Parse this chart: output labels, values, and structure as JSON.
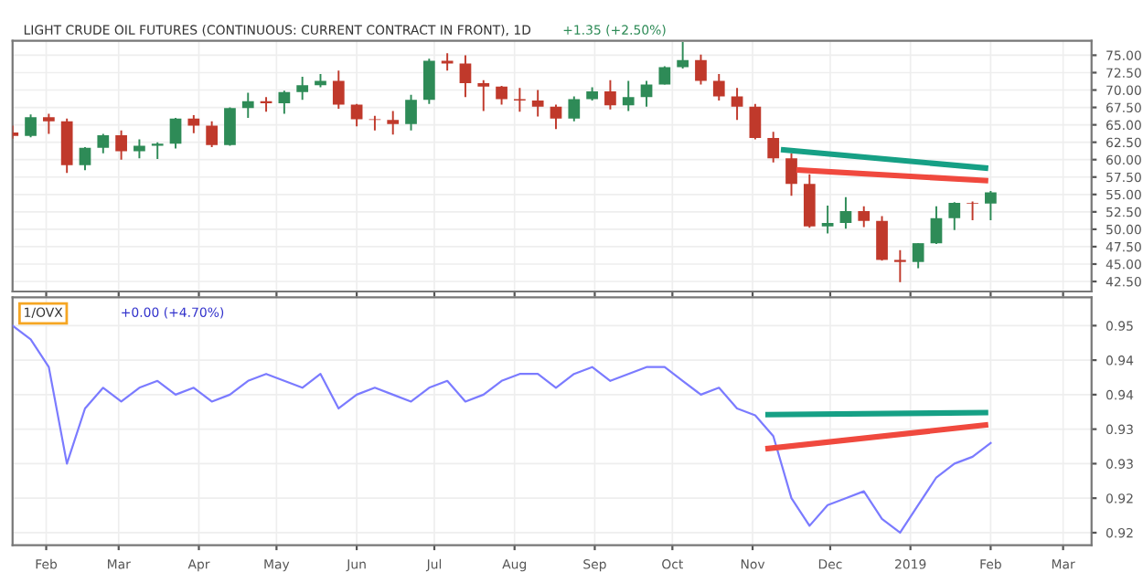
{
  "chart_data": [
    {
      "type": "candlestick",
      "title": "LIGHT CRUDE OIL FUTURES (CONTINUOUS: CURRENT CONTRACT IN FRONT), 1D",
      "annotations": [
        "+1.35 (+2.50%)"
      ],
      "x": [
        "2018-01-19",
        "2018-01-26",
        "2018-02-02",
        "2018-02-09",
        "2018-02-16",
        "2018-02-23",
        "2018-03-02",
        "2018-03-09",
        "2018-03-16",
        "2018-03-23",
        "2018-03-30",
        "2018-04-06",
        "2018-04-13",
        "2018-04-20",
        "2018-04-27",
        "2018-05-04",
        "2018-05-11",
        "2018-05-18",
        "2018-05-25",
        "2018-06-01",
        "2018-06-08",
        "2018-06-15",
        "2018-06-22",
        "2018-06-29",
        "2018-07-06",
        "2018-07-13",
        "2018-07-20",
        "2018-07-27",
        "2018-08-03",
        "2018-08-10",
        "2018-08-17",
        "2018-08-24",
        "2018-08-31",
        "2018-09-07",
        "2018-09-14",
        "2018-09-21",
        "2018-09-28",
        "2018-10-05",
        "2018-10-12",
        "2018-10-19",
        "2018-10-26",
        "2018-11-02",
        "2018-11-09",
        "2018-11-16",
        "2018-11-23",
        "2018-11-30",
        "2018-12-07",
        "2018-12-14",
        "2018-12-21",
        "2018-12-28",
        "2019-01-04",
        "2019-01-11",
        "2019-01-18",
        "2019-01-25",
        "2019-02-01"
      ],
      "ohlc": [
        [
          63.9,
          64.9,
          63.0,
          63.4
        ],
        [
          63.4,
          66.5,
          63.2,
          66.1
        ],
        [
          66.1,
          66.6,
          63.7,
          65.5
        ],
        [
          65.5,
          65.9,
          58.1,
          59.2
        ],
        [
          59.2,
          61.8,
          58.5,
          61.7
        ],
        [
          61.7,
          63.7,
          60.9,
          63.5
        ],
        [
          63.5,
          64.2,
          60.0,
          61.2
        ],
        [
          61.2,
          62.9,
          60.2,
          62.0
        ],
        [
          62.0,
          62.5,
          60.1,
          62.3
        ],
        [
          62.3,
          66.0,
          61.6,
          65.9
        ],
        [
          65.9,
          66.4,
          63.8,
          64.9
        ],
        [
          64.9,
          65.5,
          61.8,
          62.1
        ],
        [
          62.1,
          67.5,
          62.0,
          67.4
        ],
        [
          67.4,
          69.6,
          66.0,
          68.4
        ],
        [
          68.4,
          69.0,
          66.9,
          68.1
        ],
        [
          68.1,
          69.9,
          66.6,
          69.7
        ],
        [
          69.7,
          71.9,
          68.6,
          70.7
        ],
        [
          70.7,
          72.3,
          70.4,
          71.3
        ],
        [
          71.3,
          72.8,
          67.3,
          67.9
        ],
        [
          67.9,
          68.0,
          64.8,
          65.8
        ],
        [
          65.8,
          66.3,
          64.2,
          65.7
        ],
        [
          65.7,
          67.0,
          63.6,
          65.1
        ],
        [
          65.1,
          69.3,
          64.2,
          68.6
        ],
        [
          68.6,
          74.5,
          68.0,
          74.2
        ],
        [
          74.2,
          75.3,
          72.8,
          73.8
        ],
        [
          73.8,
          75.0,
          69.0,
          71.0
        ],
        [
          71.0,
          71.4,
          67.0,
          70.5
        ],
        [
          70.5,
          70.6,
          67.9,
          68.7
        ],
        [
          68.7,
          70.3,
          66.9,
          68.5
        ],
        [
          68.5,
          70.0,
          66.2,
          67.6
        ],
        [
          67.6,
          67.9,
          64.4,
          65.9
        ],
        [
          65.9,
          69.1,
          65.5,
          68.7
        ],
        [
          68.7,
          70.4,
          68.5,
          69.8
        ],
        [
          69.8,
          71.4,
          67.2,
          67.8
        ],
        [
          67.8,
          71.3,
          67.0,
          69.0
        ],
        [
          69.0,
          71.3,
          67.6,
          70.8
        ],
        [
          70.8,
          73.4,
          70.8,
          73.3
        ],
        [
          73.3,
          76.9,
          73.1,
          74.3
        ],
        [
          74.3,
          75.1,
          70.8,
          71.3
        ],
        [
          71.3,
          72.3,
          68.5,
          69.1
        ],
        [
          69.1,
          70.3,
          65.7,
          67.6
        ],
        [
          67.6,
          68.0,
          62.9,
          63.1
        ],
        [
          63.1,
          64.0,
          59.6,
          60.2
        ],
        [
          60.2,
          60.9,
          54.8,
          56.5
        ],
        [
          56.5,
          57.9,
          50.2,
          50.4
        ],
        [
          50.4,
          53.4,
          49.4,
          50.9
        ],
        [
          50.9,
          54.6,
          50.1,
          52.6
        ],
        [
          52.6,
          53.3,
          50.3,
          51.2
        ],
        [
          51.2,
          51.9,
          45.5,
          45.6
        ],
        [
          45.6,
          47.0,
          42.4,
          45.3
        ],
        [
          45.3,
          48.0,
          44.4,
          48.0
        ],
        [
          48.0,
          53.3,
          47.9,
          51.6
        ],
        [
          51.6,
          53.9,
          49.9,
          53.8
        ],
        [
          53.8,
          54.0,
          51.3,
          53.7
        ],
        [
          53.7,
          55.5,
          51.3,
          55.3
        ]
      ],
      "colors": [
        "#c0392b",
        "#2e8b57",
        "#c0392b",
        "#c0392b",
        "#2e8b57",
        "#2e8b57",
        "#c0392b",
        "#2e8b57",
        "#2e8b57",
        "#2e8b57",
        "#c0392b",
        "#c0392b",
        "#2e8b57",
        "#2e8b57",
        "#c0392b",
        "#2e8b57",
        "#2e8b57",
        "#2e8b57",
        "#c0392b",
        "#c0392b",
        "#c0392b",
        "#c0392b",
        "#2e8b57",
        "#2e8b57",
        "#c0392b",
        "#c0392b",
        "#c0392b",
        "#c0392b",
        "#c0392b",
        "#c0392b",
        "#c0392b",
        "#2e8b57",
        "#2e8b57",
        "#c0392b",
        "#2e8b57",
        "#2e8b57",
        "#2e8b57",
        "#2e8b57",
        "#c0392b",
        "#c0392b",
        "#c0392b",
        "#c0392b",
        "#c0392b",
        "#c0392b",
        "#c0392b",
        "#2e8b57",
        "#2e8b57",
        "#c0392b",
        "#c0392b",
        "#c0392b",
        "#2e8b57",
        "#2e8b57",
        "#2e8b57",
        "#c0392b",
        "#2e8b57"
      ],
      "series": [
        {
          "type": "line",
          "x": [
            "2018-11-13",
            "2019-01-30"
          ],
          "values": [
            61.4,
            58.8
          ],
          "color": "#16a085"
        },
        {
          "type": "line",
          "x": [
            "2018-11-19",
            "2019-01-30"
          ],
          "values": [
            58.5,
            57.0
          ],
          "color": "#f0493e"
        }
      ],
      "xlim": [
        "2018-01-19",
        "2019-03-12"
      ],
      "ylim": [
        41.06,
        77.07
      ],
      "yticks": [
        {
          "value": 42.5,
          "label": "42.50"
        },
        {
          "value": 45,
          "label": "45.00"
        },
        {
          "value": 47.5,
          "label": "47.50"
        },
        {
          "value": 50,
          "label": "50.00"
        },
        {
          "value": 52.5,
          "label": "52.50"
        },
        {
          "value": 55,
          "label": "55.00"
        },
        {
          "value": 57.5,
          "label": "57.50"
        },
        {
          "value": 60,
          "label": "60.00"
        },
        {
          "value": 62.5,
          "label": "62.50"
        },
        {
          "value": 65,
          "label": "65.00"
        },
        {
          "value": 67.5,
          "label": "67.50"
        },
        {
          "value": 70,
          "label": "70.00"
        },
        {
          "value": 72.5,
          "label": "72.50"
        },
        {
          "value": 75,
          "label": "75.00"
        }
      ],
      "xticks": [
        {
          "value": "2018-02-01",
          "label": null
        },
        {
          "value": "2018-03-01",
          "label": null
        },
        {
          "value": "2018-04-01",
          "label": null
        },
        {
          "value": "2018-05-01",
          "label": null
        },
        {
          "value": "2018-06-01",
          "label": null
        },
        {
          "value": "2018-07-01",
          "label": null
        },
        {
          "value": "2018-08-01",
          "label": null
        },
        {
          "value": "2018-09-01",
          "label": null
        },
        {
          "value": "2018-10-01",
          "label": null
        },
        {
          "value": "2018-11-01",
          "label": null
        },
        {
          "value": "2018-12-01",
          "label": null
        },
        {
          "value": "2019-01-01",
          "label": null
        },
        {
          "value": "2019-02-01",
          "label": null
        },
        {
          "value": "2019-03-01",
          "label": null
        }
      ],
      "tick_labels": "y",
      "grid": true,
      "legend": false
    },
    {
      "type": "line",
      "annotations": [
        "1/OVX",
        "+0.00 (+4.70%)"
      ],
      "series": [
        {
          "x": [
            "2018-01-19",
            "2018-01-26",
            "2018-02-02",
            "2018-02-09",
            "2018-02-16",
            "2018-02-23",
            "2018-03-02",
            "2018-03-09",
            "2018-03-16",
            "2018-03-23",
            "2018-03-30",
            "2018-04-06",
            "2018-04-13",
            "2018-04-20",
            "2018-04-27",
            "2018-05-04",
            "2018-05-11",
            "2018-05-18",
            "2018-05-25",
            "2018-06-01",
            "2018-06-08",
            "2018-06-15",
            "2018-06-22",
            "2018-06-29",
            "2018-07-06",
            "2018-07-13",
            "2018-07-20",
            "2018-07-27",
            "2018-08-03",
            "2018-08-10",
            "2018-08-17",
            "2018-08-24",
            "2018-08-31",
            "2018-09-07",
            "2018-09-14",
            "2018-09-21",
            "2018-09-28",
            "2018-10-05",
            "2018-10-12",
            "2018-10-19",
            "2018-10-26",
            "2018-11-02",
            "2018-11-09",
            "2018-11-16",
            "2018-11-23",
            "2018-11-30",
            "2018-12-07",
            "2018-12-14",
            "2018-12-21",
            "2018-12-28",
            "2019-01-04",
            "2019-01-11",
            "2019-01-18",
            "2019-01-25",
            "2019-02-01"
          ],
          "values": [
            0.95,
            0.948,
            0.944,
            0.93,
            0.938,
            0.941,
            0.939,
            0.941,
            0.942,
            0.94,
            0.941,
            0.939,
            0.94,
            0.942,
            0.943,
            0.942,
            0.941,
            0.943,
            0.938,
            0.94,
            0.941,
            0.94,
            0.939,
            0.941,
            0.942,
            0.939,
            0.94,
            0.942,
            0.943,
            0.943,
            0.941,
            0.943,
            0.944,
            0.942,
            0.943,
            0.944,
            0.944,
            0.942,
            0.94,
            0.941,
            0.938,
            0.937,
            0.934,
            0.925,
            0.921,
            0.924,
            0.925,
            0.926,
            0.922,
            0.92,
            0.924,
            0.928,
            0.93,
            0.931,
            0.933
          ],
          "color": "#7b7bff"
        },
        {
          "x": [
            "2018-11-07",
            "2019-01-30"
          ],
          "values": [
            0.9371,
            0.9374
          ],
          "color": "#16a085"
        },
        {
          "x": [
            "2018-11-07",
            "2019-01-30"
          ],
          "values": [
            0.9322,
            0.9356
          ],
          "color": "#f0493e"
        }
      ],
      "xlim": [
        "2018-01-19",
        "2019-03-12"
      ],
      "ylim": [
        0.9182,
        0.9541
      ],
      "yticks": [
        {
          "value": 0.92,
          "label": "0.92"
        },
        {
          "value": 0.925,
          "label": "0.92"
        },
        {
          "value": 0.93,
          "label": "0.93"
        },
        {
          "value": 0.935,
          "label": "0.93"
        },
        {
          "value": 0.94,
          "label": "0.94"
        },
        {
          "value": 0.945,
          "label": "0.94"
        },
        {
          "value": 0.95,
          "label": "0.95"
        }
      ],
      "xticks": [
        {
          "value": "2018-02-01",
          "label": "Feb"
        },
        {
          "value": "2018-03-01",
          "label": "Mar"
        },
        {
          "value": "2018-04-01",
          "label": "Apr"
        },
        {
          "value": "2018-05-01",
          "label": "May"
        },
        {
          "value": "2018-06-01",
          "label": "Jun"
        },
        {
          "value": "2018-07-01",
          "label": "Jul"
        },
        {
          "value": "2018-08-01",
          "label": "Aug"
        },
        {
          "value": "2018-09-01",
          "label": "Sep"
        },
        {
          "value": "2018-10-01",
          "label": "Oct"
        },
        {
          "value": "2018-11-01",
          "label": "Nov"
        },
        {
          "value": "2018-12-01",
          "label": "Dec"
        },
        {
          "value": "2019-01-01",
          "label": "2019"
        },
        {
          "value": "2019-02-01",
          "label": "Feb"
        },
        {
          "value": "2019-03-01",
          "label": "Mar"
        }
      ],
      "grid": true,
      "legend": false
    }
  ]
}
